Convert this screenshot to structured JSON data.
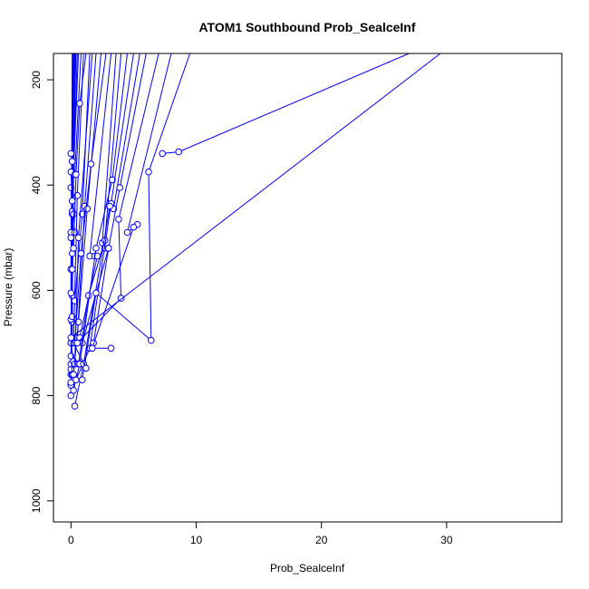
{
  "chart_data": {
    "type": "line",
    "title": "ATOM1 Southbound Prob_SealceInf",
    "xlabel": "Prob_SealceInf",
    "ylabel": "Pressure (mbar)",
    "xlim": [
      -1.4,
      39.2
    ],
    "ylim": [
      1040,
      150
    ],
    "y_reversed": true,
    "xticks": [
      0,
      10,
      20,
      30
    ],
    "yticks": [
      200,
      400,
      600,
      800,
      1000
    ],
    "series_color": "#0000ff",
    "marker": "open-circle",
    "grid": false,
    "legend": "none",
    "series": [
      {
        "x": [
          0.1,
          0.0,
          0.0,
          0.0,
          0.0
        ],
        "y": [
          150,
          800,
          780,
          760,
          780
        ]
      },
      {
        "x": [
          0.15,
          0.0,
          0.1,
          0.0,
          0.2,
          0.0
        ],
        "y": [
          150,
          750,
          760,
          740,
          735,
          775
        ]
      },
      {
        "x": [
          0.2,
          0.1,
          0.0,
          0.1
        ],
        "y": [
          150,
          700,
          725,
          760
        ]
      },
      {
        "x": [
          0.25,
          0.1,
          0.0,
          0.2
        ],
        "y": [
          150,
          660,
          700,
          735
        ]
      },
      {
        "x": [
          0.3,
          0.1,
          0.0,
          0.0
        ],
        "y": [
          150,
          610,
          655,
          700
        ]
      },
      {
        "x": [
          0.12,
          0.0,
          0.0,
          0.1
        ],
        "y": [
          150,
          560,
          605,
          650
        ]
      },
      {
        "x": [
          0.35,
          0.1,
          0.0,
          0.1
        ],
        "y": [
          150,
          530,
          500,
          560
        ]
      },
      {
        "x": [
          0.4,
          0.0,
          0.1,
          0.0
        ],
        "y": [
          150,
          490,
          455,
          500
        ]
      },
      {
        "x": [
          0.5,
          0.1,
          0.0,
          0.2
        ],
        "y": [
          150,
          450,
          405,
          455
        ]
      },
      {
        "x": [
          0.6,
          0.1,
          0.0,
          0.3
        ],
        "y": [
          150,
          430,
          375,
          490
        ]
      },
      {
        "x": [
          0.8,
          0.3,
          0.1,
          0.0
        ],
        "y": [
          150,
          380,
          355,
          340
        ]
      },
      {
        "x": [
          1.0,
          0.5,
          0.2
        ],
        "y": [
          150,
          420,
          700
        ]
      },
      {
        "x": [
          1.2,
          0.7,
          0.4,
          0.2
        ],
        "y": [
          150,
          245,
          380,
          520
        ]
      },
      {
        "x": [
          1.5,
          0.9,
          0.3
        ],
        "y": [
          150,
          455,
          620
        ]
      },
      {
        "x": [
          1.7,
          0.6,
          0.3
        ],
        "y": [
          150,
          500,
          740
        ]
      },
      {
        "x": [
          2.0,
          1.1,
          0.5
        ],
        "y": [
          150,
          440,
          690
        ]
      },
      {
        "x": [
          2.4,
          1.3,
          0.6,
          0.2
        ],
        "y": [
          150,
          445,
          660,
          760
        ]
      },
      {
        "x": [
          2.8,
          1.6,
          0.8,
          0.3
        ],
        "y": [
          150,
          360,
          530,
          700
        ]
      },
      {
        "x": [
          3.2,
          1.5,
          1.9,
          2.1,
          0.7
        ],
        "y": [
          150,
          535,
          535,
          535,
          690
        ]
      },
      {
        "x": [
          3.6,
          2.5,
          2.7,
          3.0,
          0.9
        ],
        "y": [
          150,
          510,
          520,
          520,
          700
        ]
      },
      {
        "x": [
          4.0,
          2.7,
          1.4,
          0.6
        ],
        "y": [
          150,
          505,
          610,
          740
        ]
      },
      {
        "x": [
          4.5,
          3.3,
          2.0,
          0.7,
          0.2
        ],
        "y": [
          150,
          390,
          520,
          740,
          790
        ]
      },
      {
        "x": [
          5.0,
          3.2,
          1.5,
          0.4
        ],
        "y": [
          150,
          435,
          710,
          770
        ]
      },
      {
        "x": [
          5.5,
          3.4,
          3.1,
          1.0,
          0.3
        ],
        "y": [
          150,
          445,
          440,
          740,
          820
        ]
      },
      {
        "x": [
          6.0,
          3.9,
          3.0,
          1.8
        ],
        "y": [
          150,
          405,
          520,
          700
        ]
      },
      {
        "x": [
          7.0,
          3.8,
          4.0,
          0.5
        ],
        "y": [
          150,
          465,
          615,
          700
        ]
      },
      {
        "x": [
          8.0,
          4.5,
          5.3,
          5.0,
          1.7,
          3.2
        ],
        "y": [
          150,
          490,
          475,
          480,
          710,
          710
        ]
      },
      {
        "x": [
          9.5,
          6.2,
          6.4,
          2.0,
          0.9
        ],
        "y": [
          150,
          375,
          695,
          605,
          770
        ]
      },
      {
        "x": [
          27.0,
          8.6,
          7.3
        ],
        "y": [
          150,
          337,
          340
        ]
      },
      {
        "x": [
          29.5,
          0.0,
          1.2
        ],
        "y": [
          150,
          690,
          748
        ]
      }
    ]
  }
}
